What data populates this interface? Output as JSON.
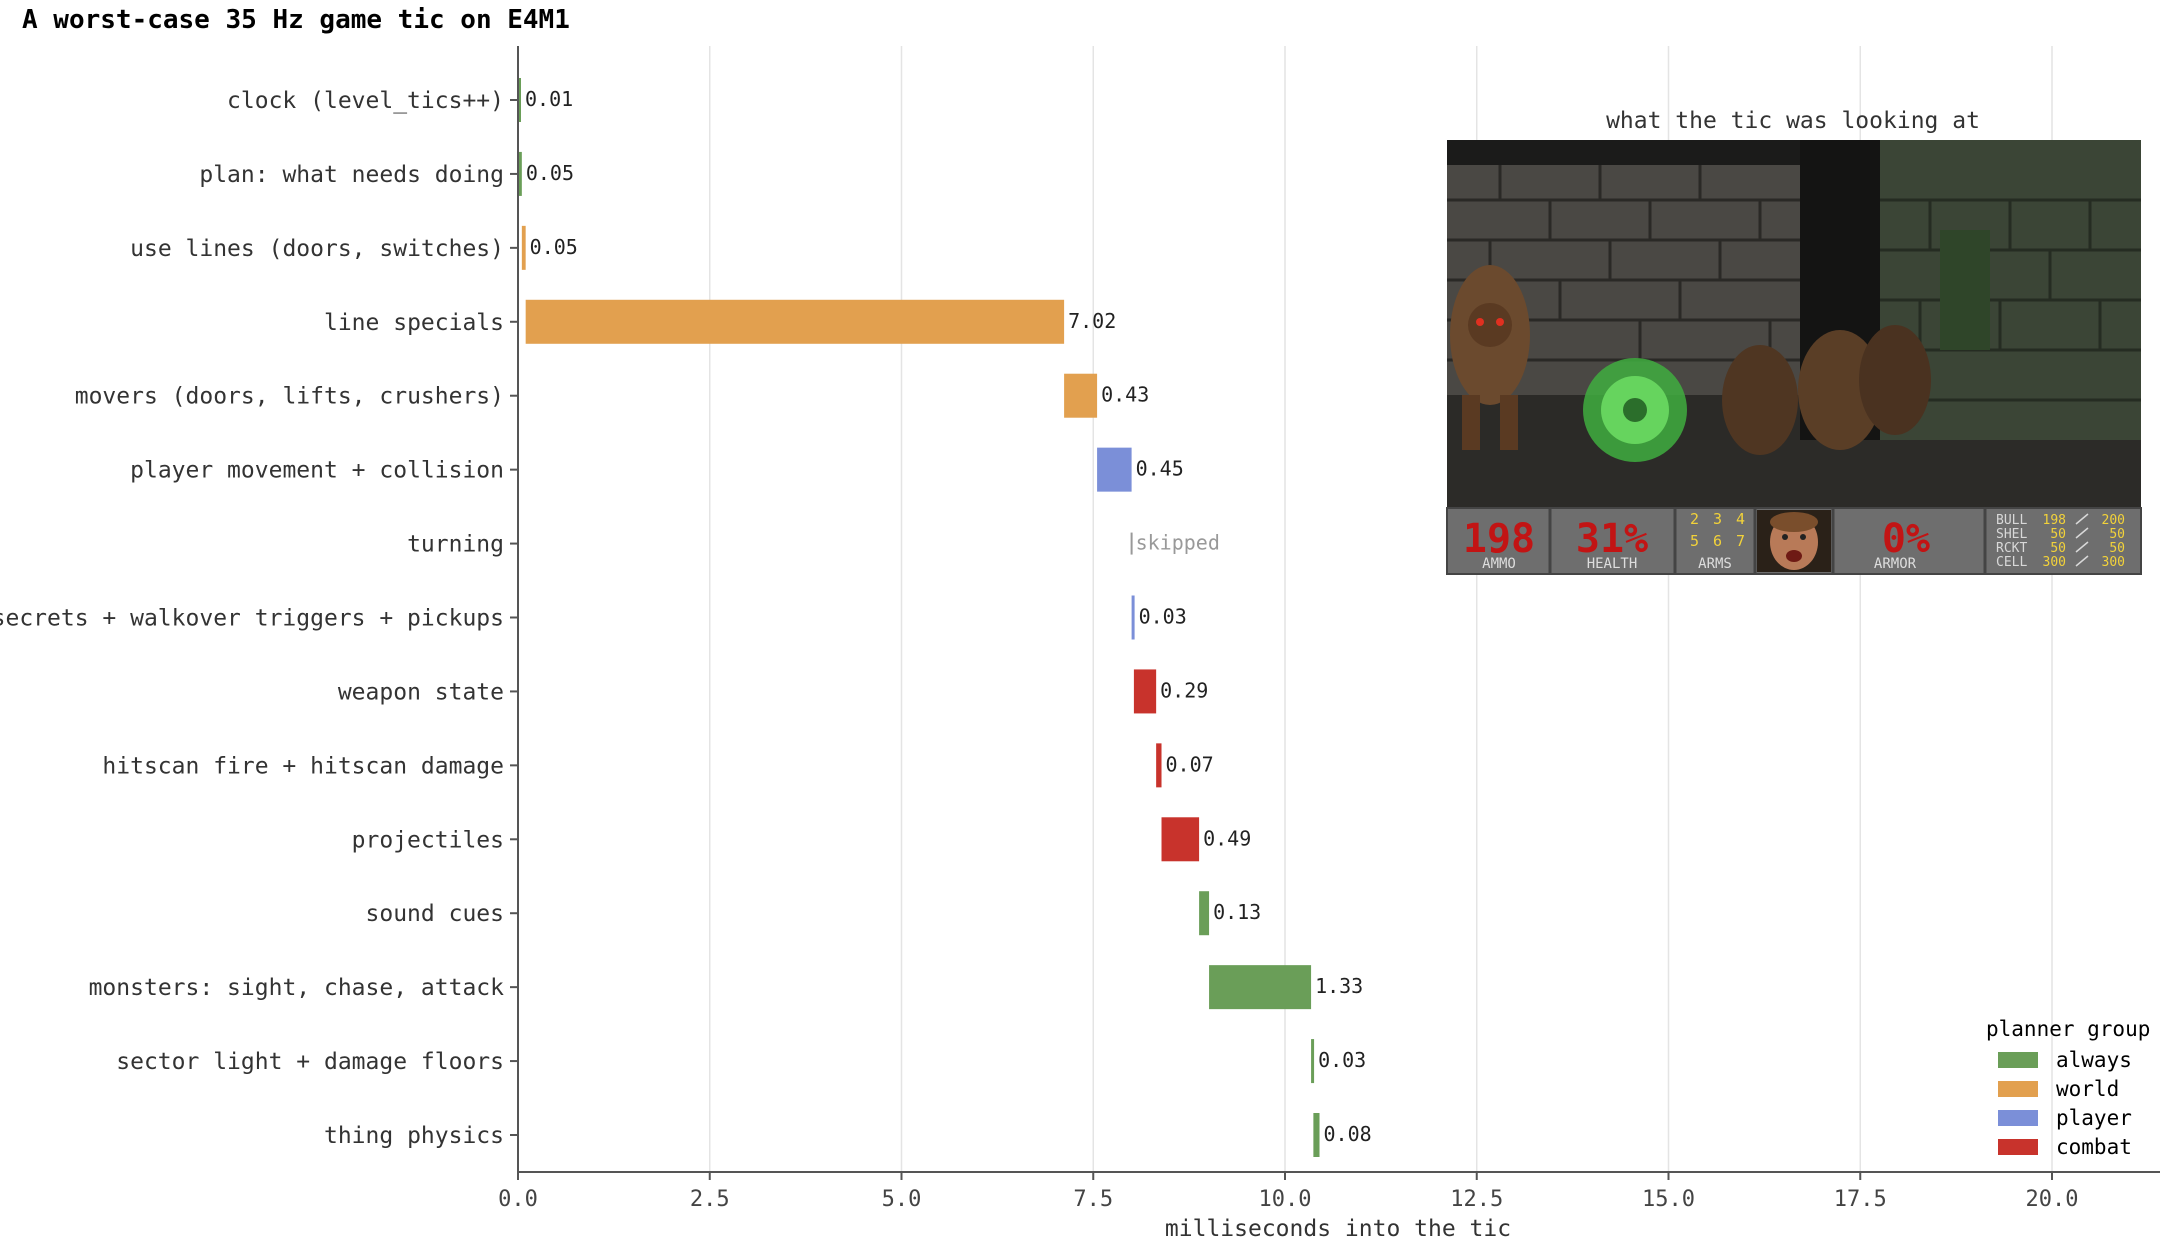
{
  "chart_data": {
    "type": "bar",
    "orientation": "horizontal-gantt",
    "title": "A worst-case 35 Hz game tic on E4M1",
    "xlabel": "milliseconds into the tic",
    "ylabel": "",
    "xlim": [
      0,
      21.3
    ],
    "xticks": [
      "0.0",
      "2.5",
      "5.0",
      "7.5",
      "10.0",
      "12.5",
      "15.0",
      "17.5",
      "20.0"
    ],
    "grid": "vertical",
    "legend": {
      "title": "planner group",
      "position": "bottom-right",
      "entries": [
        {
          "label": "always",
          "color": "#6a9e58"
        },
        {
          "label": "world",
          "color": "#e2a04f"
        },
        {
          "label": "player",
          "color": "#7b8fd8"
        },
        {
          "label": "combat",
          "color": "#c8332c"
        }
      ]
    },
    "bars": [
      {
        "label": "clock (level_tics++)",
        "start": 0.0,
        "duration": 0.01,
        "group": "always",
        "value_label": "0.01"
      },
      {
        "label": "plan: what needs doing",
        "start": 0.0,
        "duration": 0.05,
        "group": "always",
        "value_label": "0.05"
      },
      {
        "label": "use lines (doors, switches)",
        "start": 0.05,
        "duration": 0.05,
        "group": "world",
        "value_label": "0.05"
      },
      {
        "label": "line specials",
        "start": 0.1,
        "duration": 7.02,
        "group": "world",
        "value_label": "7.02"
      },
      {
        "label": "movers (doors, lifts, crushers)",
        "start": 7.12,
        "duration": 0.43,
        "group": "world",
        "value_label": "0.43"
      },
      {
        "label": "player movement + collision",
        "start": 7.55,
        "duration": 0.45,
        "group": "player",
        "value_label": "0.45"
      },
      {
        "label": "turning",
        "start": 8.0,
        "duration": 0,
        "group": "skipped",
        "value_label": "skipped"
      },
      {
        "label": "secrets + walkover triggers + pickups",
        "start": 8.0,
        "duration": 0.03,
        "group": "player",
        "value_label": "0.03"
      },
      {
        "label": "weapon state",
        "start": 8.03,
        "duration": 0.29,
        "group": "combat",
        "value_label": "0.29"
      },
      {
        "label": "hitscan fire + hitscan damage",
        "start": 8.32,
        "duration": 0.07,
        "group": "combat",
        "value_label": "0.07"
      },
      {
        "label": "projectiles",
        "start": 8.39,
        "duration": 0.49,
        "group": "combat",
        "value_label": "0.49"
      },
      {
        "label": "sound cues",
        "start": 8.88,
        "duration": 0.13,
        "group": "always",
        "value_label": "0.13"
      },
      {
        "label": "monsters: sight, chase, attack",
        "start": 9.01,
        "duration": 1.33,
        "group": "always",
        "value_label": "1.33"
      },
      {
        "label": "sector light + damage floors",
        "start": 10.34,
        "duration": 0.03,
        "group": "always",
        "value_label": "0.03"
      },
      {
        "label": "thing physics",
        "start": 10.37,
        "duration": 0.08,
        "group": "always",
        "value_label": "0.08"
      }
    ],
    "inset": {
      "title": "what the tic was looking at",
      "hud": {
        "ammo": "198",
        "ammo_label": "AMMO",
        "health": "31%",
        "health_label": "HEALTH",
        "arms": [
          "2",
          "3",
          "4",
          "5",
          "6",
          "7"
        ],
        "arms_label": "ARMS",
        "armor": "0%",
        "armor_label": "ARMOR",
        "ammo_table": [
          {
            "name": "BULL",
            "cur": "198",
            "max": "200"
          },
          {
            "name": "SHEL",
            "cur": "50",
            "max": "50"
          },
          {
            "name": "RCKT",
            "cur": "50",
            "max": "50"
          },
          {
            "name": "CELL",
            "cur": "300",
            "max": "300"
          }
        ]
      }
    }
  },
  "colors": {
    "always": "#6a9e58",
    "world": "#e2a04f",
    "player": "#7b8fd8",
    "combat": "#c8332c",
    "skipped": "#999999",
    "axis": "#555555",
    "grid": "#e4e4e4",
    "text": "#222222"
  }
}
